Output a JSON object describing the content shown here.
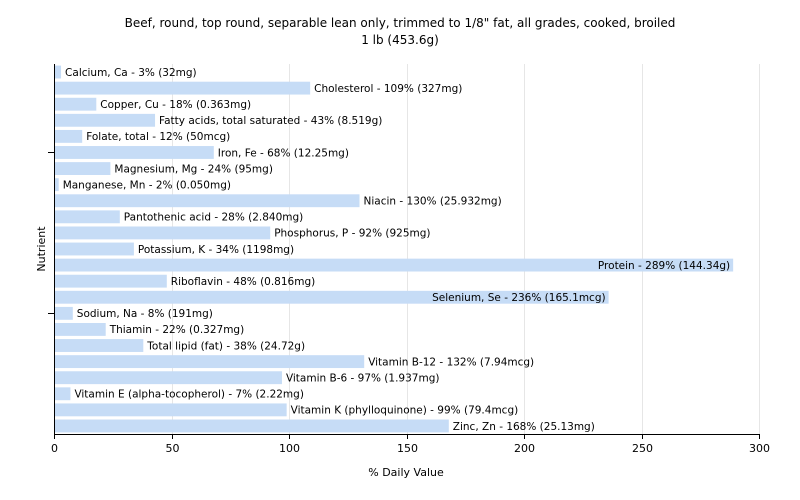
{
  "chart_data": {
    "type": "bar",
    "orientation": "horizontal",
    "title": "Beef, round, top round, separable lean only, trimmed to 1/8\" fat, all grades, cooked, broiled",
    "subtitle": "1 lb (453.6g)",
    "xlabel": "% Daily Value",
    "ylabel": "Nutrient",
    "xlim": [
      0,
      300
    ],
    "xticks": [
      0,
      50,
      100,
      150,
      200,
      250,
      300
    ],
    "grid": true,
    "legend": "none",
    "bar_color": "#c6dcf6",
    "grid_color": "#e6e6e6",
    "categories": [
      "Calcium, Ca",
      "Cholesterol",
      "Copper, Cu",
      "Fatty acids, total saturated",
      "Folate, total",
      "Iron, Fe",
      "Magnesium, Mg",
      "Manganese, Mn",
      "Niacin",
      "Pantothenic acid",
      "Phosphorus, P",
      "Potassium, K",
      "Protein",
      "Riboflavin",
      "Selenium, Se",
      "Sodium, Na",
      "Thiamin",
      "Total lipid (fat)",
      "Vitamin B-12",
      "Vitamin B-6",
      "Vitamin E (alpha-tocopherol)",
      "Vitamin K (phylloquinone)",
      "Zinc, Zn"
    ],
    "values": [
      3,
      109,
      18,
      43,
      12,
      68,
      24,
      2,
      130,
      28,
      92,
      34,
      289,
      48,
      236,
      8,
      22,
      38,
      132,
      97,
      7,
      99,
      168
    ],
    "bar_labels": [
      "Calcium, Ca - 3% (32mg)",
      "Cholesterol - 109% (327mg)",
      "Copper, Cu - 18% (0.363mg)",
      "Fatty acids, total saturated - 43% (8.519g)",
      "Folate, total - 12% (50mcg)",
      "Iron, Fe - 68% (12.25mg)",
      "Magnesium, Mg - 24% (95mg)",
      "Manganese, Mn - 2% (0.050mg)",
      "Niacin - 130% (25.932mg)",
      "Pantothenic acid - 28% (2.840mg)",
      "Phosphorus, P - 92% (925mg)",
      "Potassium, K - 34% (1198mg)",
      "Protein - 289% (144.34g)",
      "Riboflavin - 48% (0.816mg)",
      "Selenium, Se - 236% (165.1mcg)",
      "Sodium, Na - 8% (191mg)",
      "Thiamin - 22% (0.327mg)",
      "Total lipid (fat) - 38% (24.72g)",
      "Vitamin B-12 - 132% (7.94mcg)",
      "Vitamin B-6 - 97% (1.937mg)",
      "Vitamin E (alpha-tocopherol) - 7% (2.22mg)",
      "Vitamin K (phylloquinone) - 99% (79.4mcg)",
      "Zinc, Zn - 168% (25.13mg)"
    ],
    "inside_label_min_value": 200
  }
}
